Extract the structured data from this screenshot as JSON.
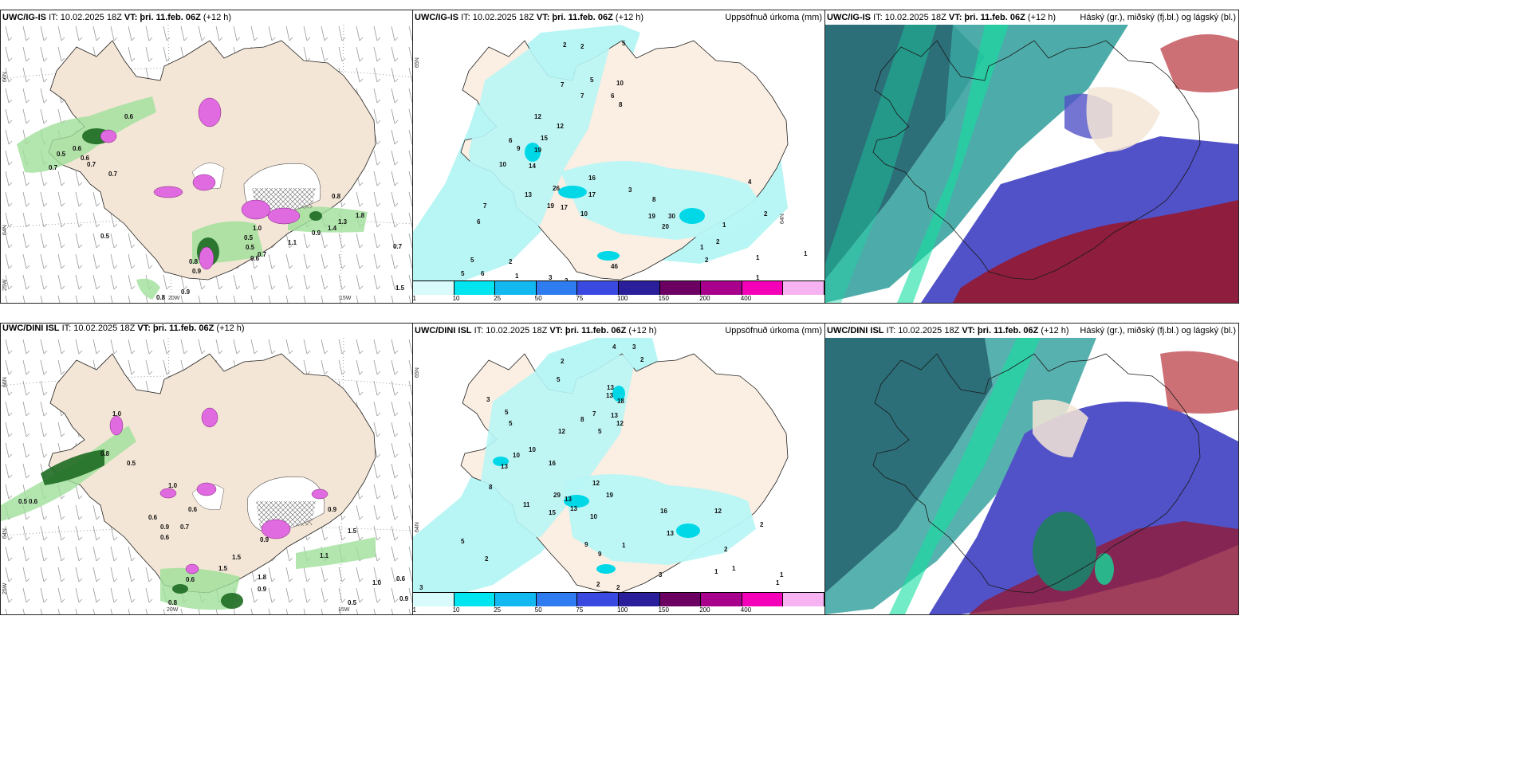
{
  "panels": [
    {
      "id": "p1",
      "model": "UWC/IG-IS",
      "it": "IT: 10.02.2025 18Z",
      "vt": "VT: þri. 11.feb. 06Z",
      "offset": "(+12 h)",
      "right": "",
      "lat1": "66N",
      "lat2": "64N",
      "lat3": "25W",
      "lon1": "20W",
      "lon2": "15W"
    },
    {
      "id": "p2",
      "model": "UWC/IG-IS",
      "it": "IT: 10.02.2025 18Z",
      "vt": "VT: þri. 11.feb. 06Z",
      "offset": "(+12 h)",
      "right": "Uppsöfnuð úrkoma (mm)",
      "lat1": "65N",
      "lat2": "64N"
    },
    {
      "id": "p3",
      "model": "UWC/IG-IS",
      "it": "IT: 10.02.2025 18Z",
      "vt": "VT: þri. 11.feb. 06Z",
      "offset": "(+12 h)",
      "right": "Háský (gr.), miðský (fj.bl.) og lágský (bl.)"
    },
    {
      "id": "p4",
      "model": "UWC/DINI ISL",
      "it": "IT: 10.02.2025 18Z",
      "vt": "VT: þri. 11.feb. 06Z",
      "offset": "(+12 h)",
      "right": "",
      "lat1": "66N",
      "lat2": "64N",
      "lat3": "25W",
      "lon1": "20W",
      "lon2": "15W"
    },
    {
      "id": "p5",
      "model": "UWC/DINI ISL",
      "it": "IT: 10.02.2025 18Z",
      "vt": "VT: þri. 11.feb. 06Z",
      "offset": "(+12 h)",
      "right": "Uppsöfnuð úrkoma (mm)",
      "lat1": "65N",
      "lat2": "64N"
    },
    {
      "id": "p6",
      "model": "UWC/DINI ISL",
      "it": "IT: 10.02.2025 18Z",
      "vt": "VT: þri. 11.feb. 06Z",
      "offset": "(+12 h)",
      "right": "Háský (gr.), miðský (fj.bl.) og lágský (bl.)"
    }
  ],
  "colorbar": {
    "labels": [
      "1",
      "10",
      "25",
      "50",
      "75",
      "100",
      "150",
      "200",
      "400"
    ],
    "colors": [
      "#d9fbfb",
      "#00e5ef",
      "#12b8f0",
      "#2f7cf0",
      "#3a49e0",
      "#2a1e9a",
      "#6b0062",
      "#a8008c",
      "#f400b8",
      "#f7b2f2"
    ]
  },
  "precip_numbers_top": [
    "2",
    "2",
    "5",
    "7",
    "7",
    "5",
    "10",
    "6",
    "8",
    "12",
    "12",
    "15",
    "19",
    "14",
    "26",
    "16",
    "17",
    "13",
    "19",
    "17",
    "10",
    "8",
    "20",
    "30",
    "19",
    "46",
    "4",
    "6",
    "9",
    "10",
    "7",
    "3",
    "2",
    "1",
    "1",
    "2",
    "1",
    "2",
    "5",
    "5",
    "6",
    "3",
    "6",
    "2",
    "1",
    "1",
    "2",
    "1"
  ],
  "precip_numbers_bottom": [
    "2",
    "4",
    "3",
    "2",
    "5",
    "3",
    "5",
    "5",
    "13",
    "13",
    "18",
    "13",
    "12",
    "10",
    "5",
    "8",
    "7",
    "12",
    "16",
    "10",
    "13",
    "8",
    "29",
    "13",
    "15",
    "12",
    "19",
    "13",
    "10",
    "11",
    "16",
    "13",
    "12",
    "9",
    "9",
    "3",
    "2",
    "1",
    "2",
    "1",
    "5",
    "1",
    "2",
    "1",
    "3",
    "1",
    "2",
    "2"
  ],
  "wind_numbers_top": [
    "0.6",
    "0.5",
    "0.7",
    "0.6",
    "0.6",
    "0.7",
    "0.5",
    "0.7",
    "0.8",
    "1.0",
    "0.5",
    "0.7",
    "0.9",
    "1.4",
    "1.3",
    "1.8",
    "0.7",
    "0.6",
    "0.5",
    "0.8",
    "0.9",
    "1.5",
    "1.1",
    "0.8",
    "0.9"
  ],
  "wind_numbers_bottom": [
    "1.0",
    "0.8",
    "0.5",
    "0.6",
    "0.9",
    "0.5",
    "0.6",
    "1.0",
    "0.6",
    "0.7",
    "0.6",
    "0.9",
    "0.9",
    "1.5",
    "1.1",
    "1.5",
    "1.8",
    "0.9",
    "0.5",
    "0.8",
    "1.0",
    "0.6",
    "0.9",
    "0.6",
    "1.5"
  ]
}
